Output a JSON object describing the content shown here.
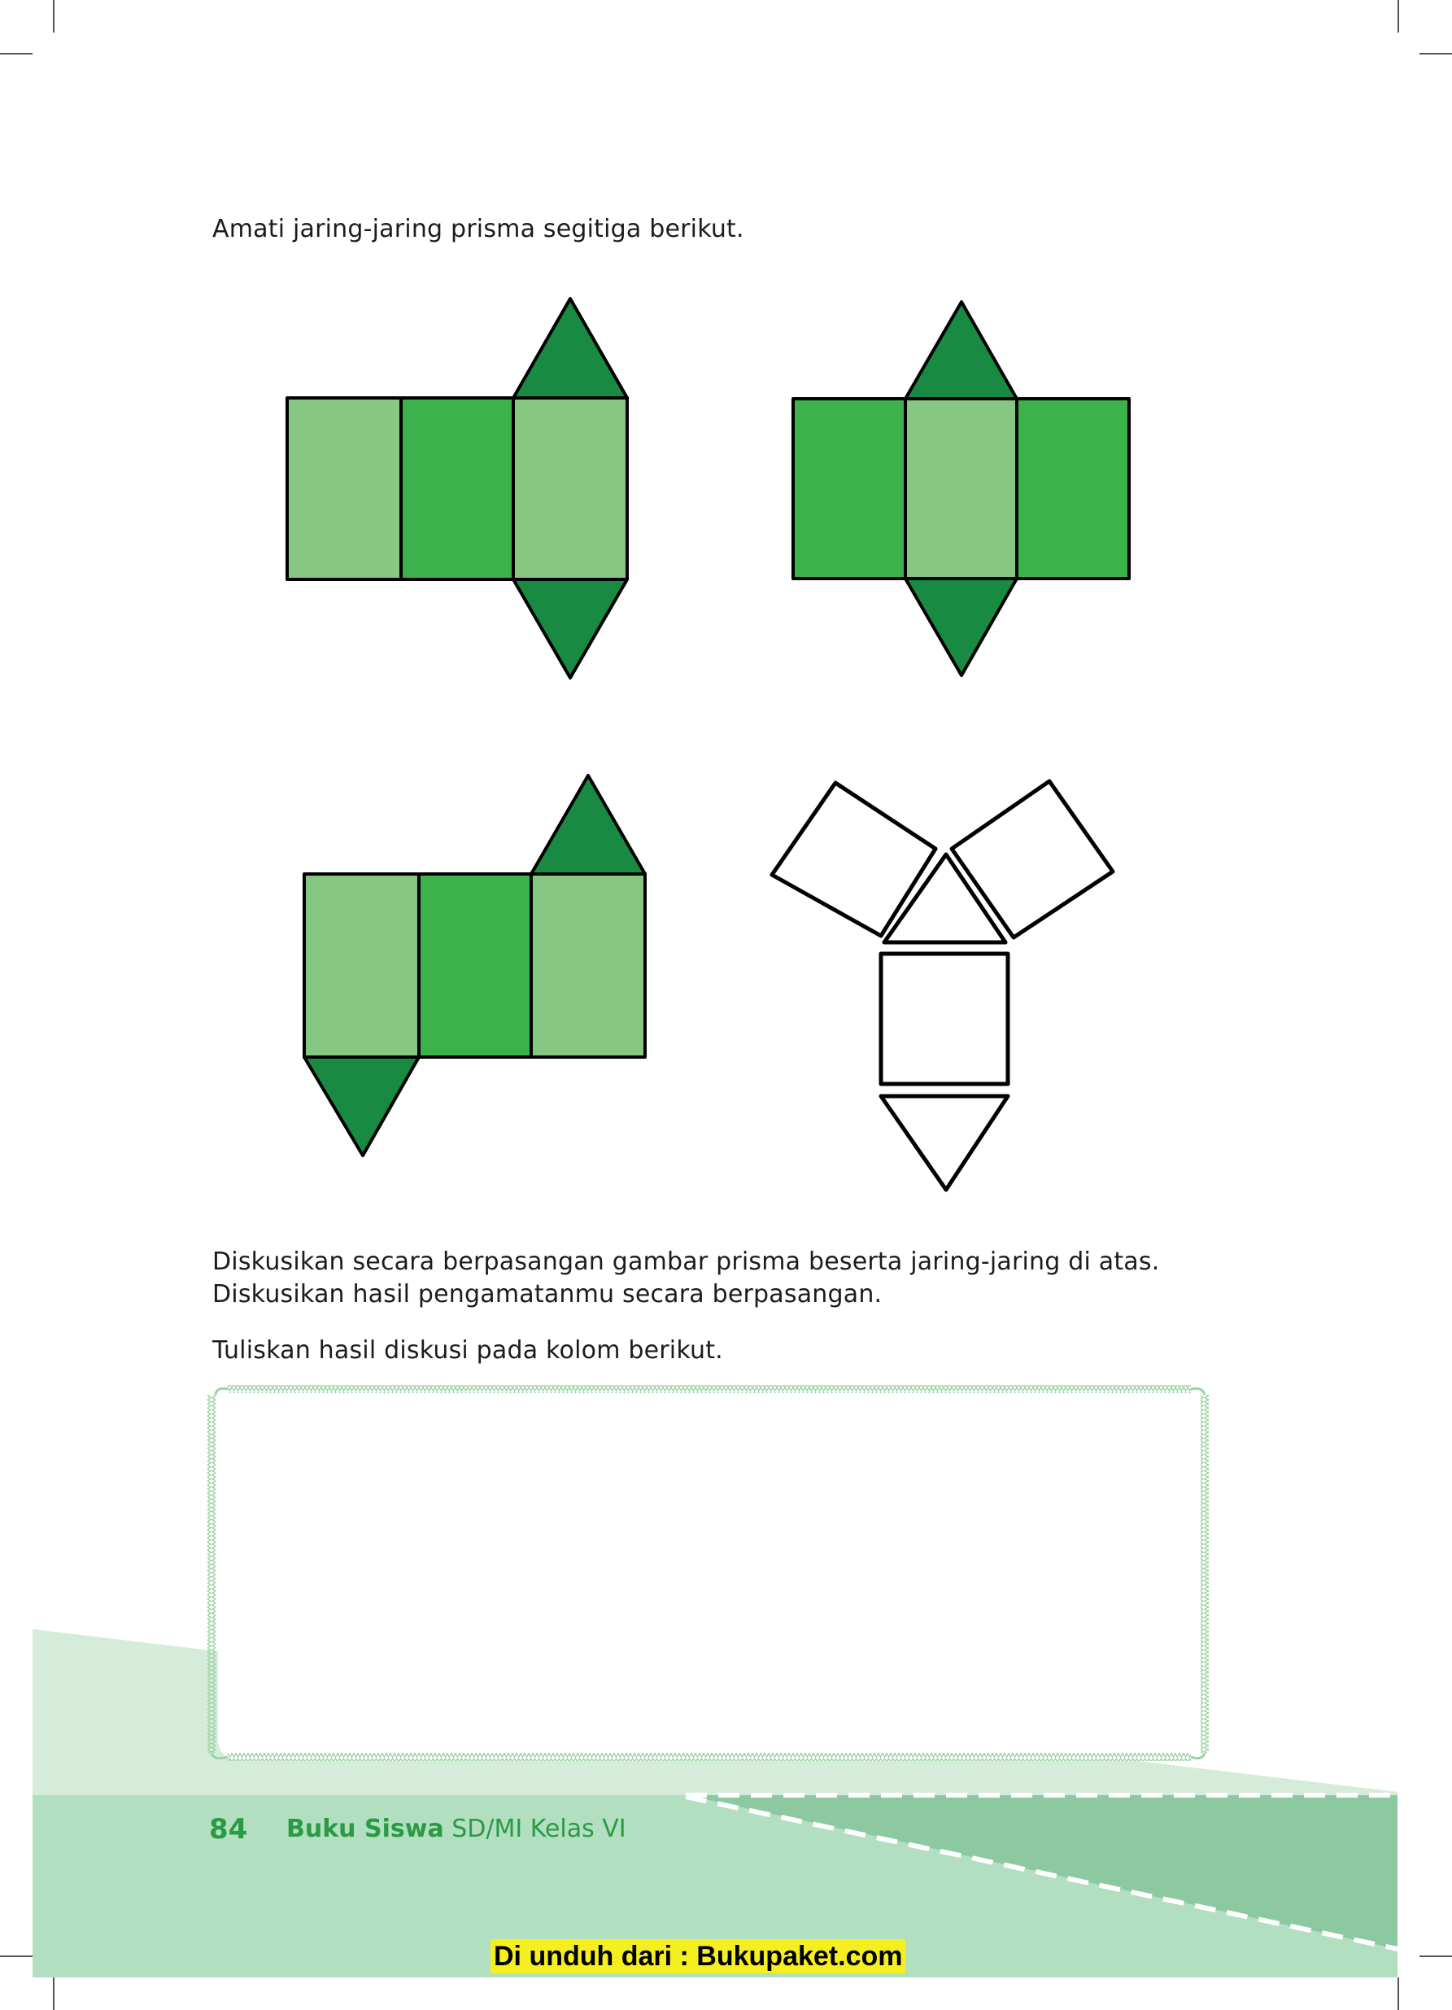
{
  "intro_text": "Amati jaring-jaring prisma segitiga berikut.",
  "discussion": {
    "line1": "Diskusikan secara berpasangan gambar prisma beserta jaring-jaring di atas.",
    "line2": "Diskusikan hasil pengamatanmu secara berpasangan.",
    "line3": "Tuliskan hasil diskusi pada kolom berikut."
  },
  "answer_box": {
    "content": ""
  },
  "footer": {
    "page_number": "84",
    "book_title_bold": "Buku Siswa",
    "book_title_rest": " SD/MI Kelas VI"
  },
  "download_notice": "Di unduh dari : Bukupaket.com",
  "colors": {
    "light_green": "#86c882",
    "mid_green": "#3bb34a",
    "dark_green": "#188a41",
    "footer_green": "#2a9a45",
    "band_light": "#b3dfc1",
    "band_pale": "#d6ecdb",
    "band_dark": "#8cc9a0",
    "highlight_yellow": "#f5ef1f"
  },
  "figures": [
    {
      "name": "net-1",
      "description_icon": "triangular-prism-net-icon"
    },
    {
      "name": "net-2",
      "description_icon": "triangular-prism-net-icon"
    },
    {
      "name": "net-3",
      "description_icon": "triangular-prism-net-icon"
    },
    {
      "name": "net-4",
      "description_icon": "triangular-prism-net-outline-icon"
    }
  ]
}
